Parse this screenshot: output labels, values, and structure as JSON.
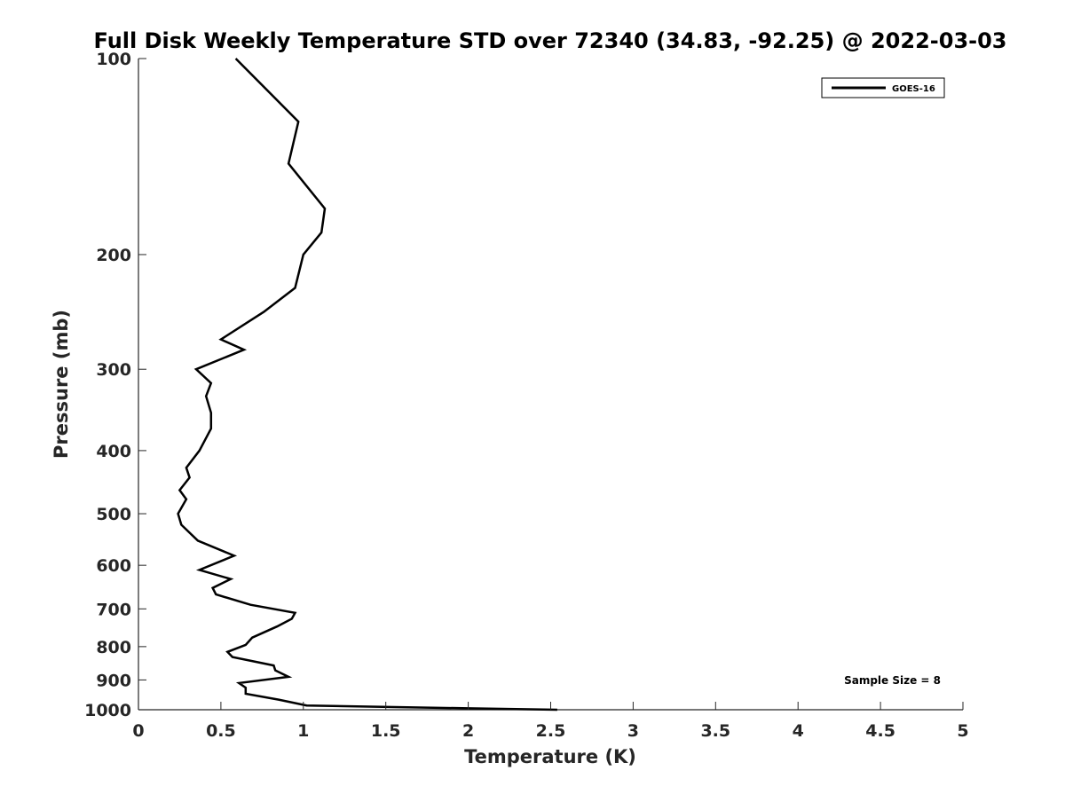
{
  "chart_data": {
    "type": "line",
    "title": "Full Disk Weekly Temperature STD over 72340 (34.83, -92.25) @ 2022-03-03",
    "xlabel": "Temperature (K)",
    "ylabel": "Pressure (mb)",
    "xlim": [
      0,
      5
    ],
    "ylim": [
      100,
      1000
    ],
    "y_scale": "log",
    "y_reversed": true,
    "x_ticks": [
      0,
      0.5,
      1,
      1.5,
      2,
      2.5,
      3,
      3.5,
      4,
      4.5,
      5
    ],
    "x_tick_labels": [
      "0",
      "0.5",
      "1",
      "1.5",
      "2",
      "2.5",
      "3",
      "3.5",
      "4",
      "4.5",
      "5"
    ],
    "y_ticks": [
      100,
      200,
      300,
      400,
      500,
      600,
      700,
      800,
      900,
      1000
    ],
    "y_tick_labels": [
      "100",
      "200",
      "300",
      "400",
      "500",
      "600",
      "700",
      "800",
      "900",
      "1000"
    ],
    "grid": false,
    "legend_position": "top-right",
    "line_color": "#000000",
    "annotation": "Sample Size = 8",
    "series": [
      {
        "name": "GOES-16",
        "points": [
          [
            0.59,
            100
          ],
          [
            0.97,
            125
          ],
          [
            0.91,
            145
          ],
          [
            1.13,
            170
          ],
          [
            1.11,
            185
          ],
          [
            1.0,
            200
          ],
          [
            0.95,
            225
          ],
          [
            0.76,
            245
          ],
          [
            0.5,
            270
          ],
          [
            0.64,
            280
          ],
          [
            0.35,
            300
          ],
          [
            0.44,
            315
          ],
          [
            0.41,
            330
          ],
          [
            0.44,
            350
          ],
          [
            0.44,
            370
          ],
          [
            0.37,
            400
          ],
          [
            0.29,
            425
          ],
          [
            0.31,
            440
          ],
          [
            0.25,
            460
          ],
          [
            0.29,
            475
          ],
          [
            0.24,
            500
          ],
          [
            0.26,
            520
          ],
          [
            0.36,
            550
          ],
          [
            0.58,
            580
          ],
          [
            0.37,
            610
          ],
          [
            0.56,
            630
          ],
          [
            0.45,
            650
          ],
          [
            0.47,
            665
          ],
          [
            0.68,
            690
          ],
          [
            0.95,
            710
          ],
          [
            0.93,
            725
          ],
          [
            0.84,
            745
          ],
          [
            0.69,
            775
          ],
          [
            0.65,
            795
          ],
          [
            0.54,
            815
          ],
          [
            0.57,
            830
          ],
          [
            0.82,
            855
          ],
          [
            0.83,
            870
          ],
          [
            0.91,
            890
          ],
          [
            0.61,
            910
          ],
          [
            0.65,
            925
          ],
          [
            0.65,
            945
          ],
          [
            0.85,
            965
          ],
          [
            1.02,
            985
          ],
          [
            2.0,
            995
          ],
          [
            2.54,
            1000
          ]
        ]
      }
    ]
  }
}
